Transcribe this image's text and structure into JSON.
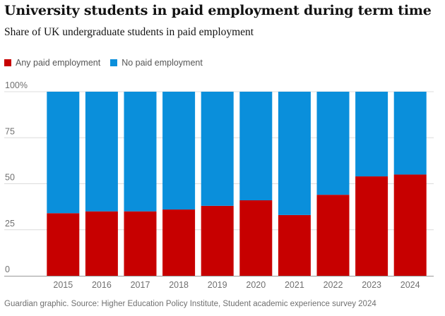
{
  "chart_data": {
    "type": "bar",
    "stacked": true,
    "title": "University students in paid employment during term time",
    "subtitle": "Share of UK undergraduate students in paid employment",
    "categories": [
      "2015",
      "2016",
      "2017",
      "2018",
      "2019",
      "2020",
      "2021",
      "2022",
      "2023",
      "2024"
    ],
    "series": [
      {
        "name": "Any paid employment",
        "color": "#c70000",
        "values": [
          34,
          35,
          35,
          36,
          38,
          41,
          33,
          44,
          54,
          55
        ]
      },
      {
        "name": "No paid employment",
        "color": "#0a8fdb",
        "values": [
          66,
          65,
          65,
          64,
          62,
          59,
          67,
          56,
          46,
          45
        ]
      }
    ],
    "yticks": [
      "100%",
      "75",
      "50",
      "25",
      "0"
    ],
    "ytick_values": [
      100,
      75,
      50,
      25,
      0
    ],
    "ylim": [
      0,
      100
    ],
    "grid": true,
    "legend_position": "top-left",
    "source": "Guardian graphic. Source: Higher Education Policy Institute, Student academic experience survey 2024"
  }
}
